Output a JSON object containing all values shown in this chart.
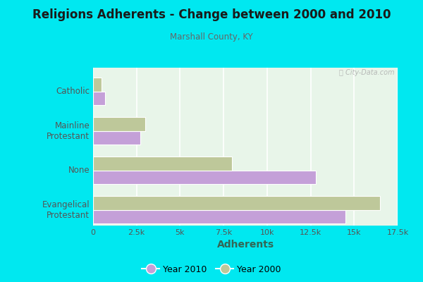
{
  "title": "Religions Adherents - Change between 2000 and 2010",
  "subtitle": "Marshall County, KY",
  "xlabel": "Adherents",
  "categories": [
    "Catholic",
    "Mainline\nProtestant",
    "None",
    "Evangelical\nProtestant"
  ],
  "year2010": [
    700,
    2700,
    12800,
    14500
  ],
  "year2000": [
    500,
    3000,
    8000,
    16500
  ],
  "color2010": "#c4a0d8",
  "color2000": "#bec89a",
  "background_outer": "#00e8f0",
  "background_inner": "#e8f5e9",
  "xlim": [
    0,
    17500
  ],
  "xticks": [
    0,
    2500,
    5000,
    7500,
    10000,
    12500,
    15000,
    17500
  ],
  "xticklabels": [
    "0",
    "2.5k",
    "5k",
    "7.5k",
    "10k",
    "12.5k",
    "15k",
    "17.5k"
  ],
  "bar_height": 0.35,
  "watermark": "ⓘ City-Data.com"
}
